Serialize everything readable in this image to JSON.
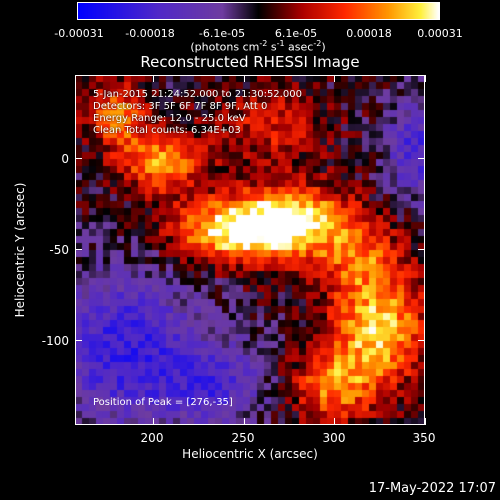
{
  "chart_data": {
    "type": "heatmap",
    "title": "Reconstructed RHESSI Image",
    "xlabel": "Heliocentric X (arcsec)",
    "ylabel": "Heliocentric Y (arcsec)",
    "xlim": [
      157,
      350
    ],
    "ylim": [
      -147,
      46
    ],
    "xticks": [
      200,
      250,
      300,
      350
    ],
    "yticks": [
      0,
      -50,
      -100
    ],
    "colorbar": {
      "ticks": [
        "-0.00031",
        "-0.00018",
        "-6.1e-05",
        "6.1e-05",
        "0.00018",
        "0.00031"
      ],
      "units_prefix": "(photons cm",
      "units_exp1": "-2",
      "units_mid": " s",
      "units_exp2": "-1",
      "units_mid2": " asec",
      "units_exp3": "-2",
      "units_suffix": ")",
      "range": [
        -0.00031,
        0.00031
      ]
    },
    "annotations": [
      "5-Jan-2015 21:24:52.000 to 21:30:52.000",
      "Detectors: 3F 5F 6F 7F 8F 9F, Att 0",
      "Energy Range: 12.0 - 25.0 keV",
      "Clean    Total counts: 6.34E+03"
    ],
    "peak_label": "Position of Peak = [276,-35]",
    "peak": [
      276,
      -35
    ],
    "sources": [
      {
        "x": 276,
        "y": -35,
        "amp": 0.00031,
        "sx": 22,
        "sy": 14
      },
      {
        "x": 240,
        "y": -40,
        "amp": 0.00026,
        "sx": 22,
        "sy": 12
      },
      {
        "x": 205,
        "y": -2,
        "amp": 0.00022,
        "sx": 16,
        "sy": 12
      },
      {
        "x": 180,
        "y": 24,
        "amp": 0.0002,
        "sx": 12,
        "sy": 12
      },
      {
        "x": 325,
        "y": -95,
        "amp": 0.00026,
        "sx": 18,
        "sy": 20
      },
      {
        "x": 300,
        "y": -125,
        "amp": 0.0002,
        "sx": 16,
        "sy": 14
      },
      {
        "x": 315,
        "y": -55,
        "amp": 0.00016,
        "sx": 16,
        "sy": 16
      },
      {
        "x": 265,
        "y": 18,
        "amp": 0.00012,
        "sx": 20,
        "sy": 14
      }
    ],
    "negative_regions": [
      {
        "x": 185,
        "y": -105,
        "amp": -0.00022,
        "sx": 28,
        "sy": 30
      },
      {
        "x": 235,
        "y": -125,
        "amp": -0.00016,
        "sx": 20,
        "sy": 16
      },
      {
        "x": 345,
        "y": 5,
        "amp": -0.00018,
        "sx": 12,
        "sy": 20
      }
    ]
  },
  "footer": {
    "date": "17-May-2022 17:07"
  }
}
